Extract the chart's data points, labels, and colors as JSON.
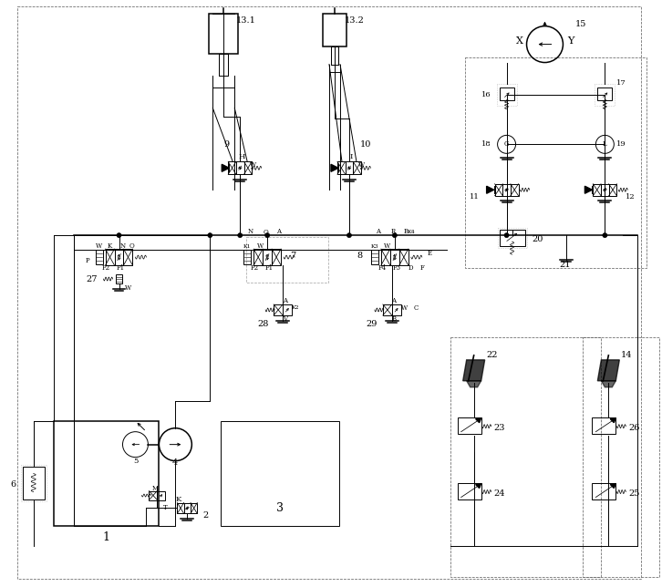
{
  "figsize": [
    7.26,
    6.44
  ],
  "dpi": 100,
  "lw": 0.7,
  "lw2": 1.1,
  "fs": 6.0,
  "fs2": 7.0,
  "labels": {
    "comp1": "1",
    "comp2": "2",
    "comp3": "3",
    "comp4": "4",
    "comp5": "5",
    "comp6": "6",
    "comp7": "7",
    "comp8": "8",
    "comp9": "9",
    "comp10": "10",
    "comp11": "11",
    "comp12": "12",
    "comp131": "13.1",
    "comp132": "13.2",
    "comp14": "14",
    "comp15": "15",
    "comp16": "16",
    "comp17": "17",
    "comp18": "18",
    "comp19": "19",
    "comp20": "20",
    "comp21": "21",
    "comp22": "22",
    "comp23": "23",
    "comp24": "24",
    "comp25": "25",
    "comp26": "26",
    "comp27": "27",
    "comp28": "28",
    "comp29": "29"
  }
}
